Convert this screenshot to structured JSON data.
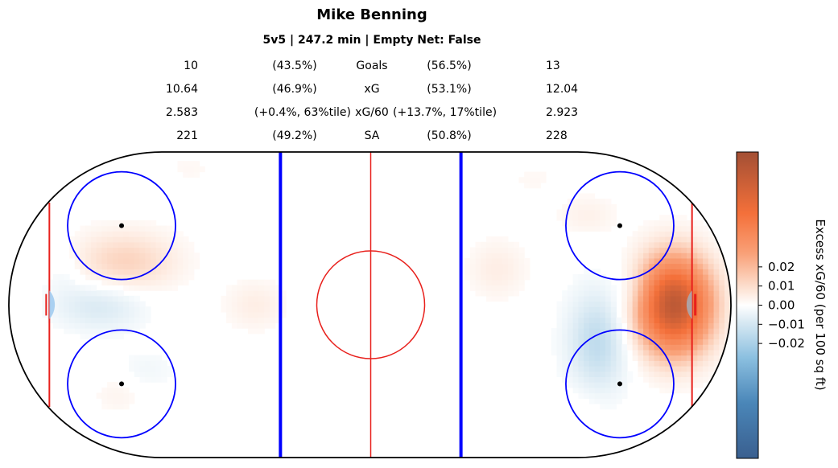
{
  "title": "Mike Benning",
  "subtitle": "5v5 | 247.2 min | Empty Net: False",
  "stats": [
    {
      "label": "Goals",
      "left_value": "10",
      "left_pct": "(43.5%)",
      "right_pct": "(56.5%)",
      "right_value": "13"
    },
    {
      "label": "xG",
      "left_value": "10.64",
      "left_pct": "(46.9%)",
      "right_pct": "(53.1%)",
      "right_value": "12.04"
    },
    {
      "label": "xG/60",
      "left_value": "2.583",
      "left_pct": "(+0.4%, 63%tile)",
      "right_pct": "(+13.7%, 17%tile)",
      "right_value": "2.923"
    },
    {
      "label": "SA",
      "left_value": "221",
      "left_pct": "(49.2%)",
      "right_pct": "(50.8%)",
      "right_value": "228"
    }
  ],
  "colors": {
    "boards": "#000000",
    "red_line": "#e8201c",
    "blue_line": "#0000ff",
    "crease": "#9cc9ee",
    "positive_high": "#a84a2a",
    "positive_mid": "#f4773e",
    "negative_high": "#4a7fb0",
    "negative_mid": "#7ab4d8",
    "neutral": "#ffffff"
  },
  "chart_data": {
    "type": "heatmap",
    "colorbar": {
      "label": "Excess xG/60 (per 100 sq ft)",
      "ticks": [
        0.02,
        0.01,
        0.0,
        -0.01,
        -0.02
      ],
      "tick_labels": [
        "0.02",
        "0.01",
        "0.00",
        "−0.01",
        "−0.02"
      ],
      "vmin": -0.08,
      "vmax": 0.08
    },
    "x_range": [
      -100,
      100
    ],
    "y_range": [
      -42.5,
      42.5
    ],
    "blobs": [
      {
        "x": -68,
        "y": 12,
        "value": 0.012,
        "sx": 10,
        "sy": 6
      },
      {
        "x": -75,
        "y": 0,
        "value": -0.009,
        "sx": 9,
        "sy": 5
      },
      {
        "x": -32,
        "y": 0,
        "value": 0.005,
        "sx": 6,
        "sy": 5
      },
      {
        "x": -70,
        "y": -25,
        "value": 0.003,
        "sx": 5,
        "sy": 4
      },
      {
        "x": -62,
        "y": -18,
        "value": -0.003,
        "sx": 6,
        "sy": 4
      },
      {
        "x": -50,
        "y": 38,
        "value": 0.002,
        "sx": 6,
        "sy": 3
      },
      {
        "x": -85,
        "y": 10,
        "value": -0.003,
        "sx": 4,
        "sy": 5
      },
      {
        "x": 84,
        "y": 0,
        "value": 0.07,
        "sx": 7,
        "sy": 9
      },
      {
        "x": 63,
        "y": -10,
        "value": -0.014,
        "sx": 6,
        "sy": 10
      },
      {
        "x": 74,
        "y": 4,
        "value": -0.006,
        "sx": 4,
        "sy": 5
      },
      {
        "x": 35,
        "y": 10,
        "value": 0.005,
        "sx": 6,
        "sy": 6
      },
      {
        "x": 60,
        "y": 25,
        "value": 0.004,
        "sx": 6,
        "sy": 4
      },
      {
        "x": 58,
        "y": -28,
        "value": 0.002,
        "sx": 5,
        "sy": 4
      },
      {
        "x": 45,
        "y": 35,
        "value": 0.002,
        "sx": 6,
        "sy": 3
      }
    ]
  }
}
